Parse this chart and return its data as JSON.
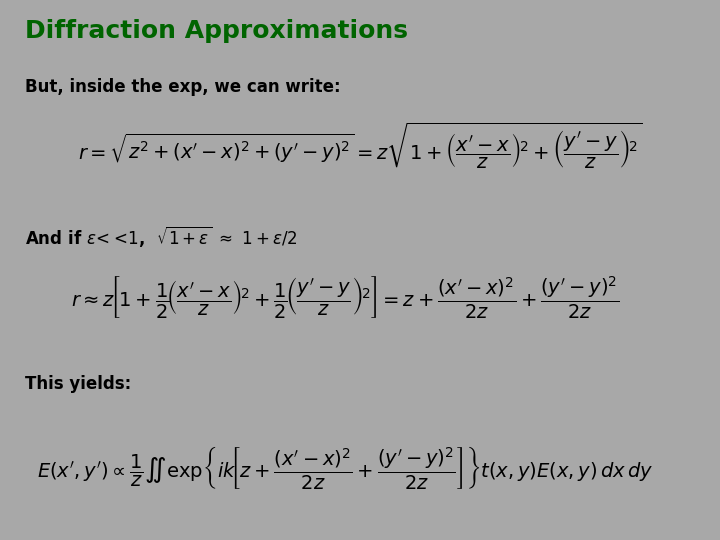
{
  "title": "Diffraction Approximations",
  "title_color": "#006400",
  "title_fontsize": 18,
  "background_color": "#a8a8a8",
  "text_color": "#000000",
  "text1": "But, inside the exp, we can write:",
  "text2": "And if ",
  "text3": "This yields:",
  "eq_color": "#000000",
  "label_fontsize": 12,
  "eq_fontsize": 14
}
